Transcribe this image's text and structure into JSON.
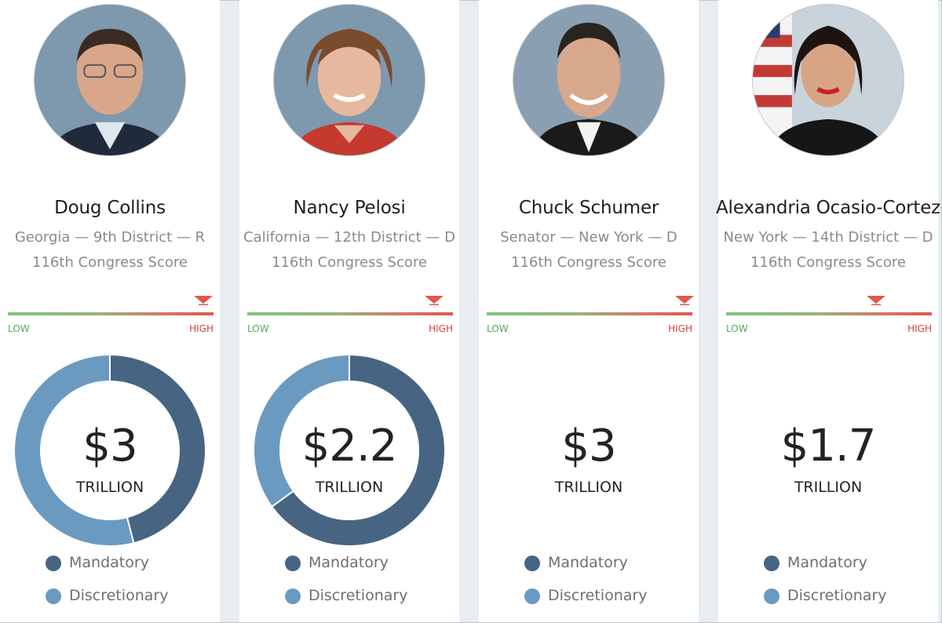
{
  "colors": {
    "mandatory": "#476582",
    "discretionary": "#6b9ac0",
    "low": "#5aa55a",
    "high": "#d4463a"
  },
  "scale": {
    "low_label": "LOW",
    "high_label": "HIGH"
  },
  "legend": {
    "mandatory": "Mandatory",
    "discretionary": "Discretionary"
  },
  "members": [
    {
      "name": "Doug Collins",
      "district": "Georgia — 9th District — R",
      "score_label": "116th Congress Score",
      "score_level": 0.95,
      "amount": "$3",
      "unit": "TRILLION",
      "chart": {
        "mandatory_fraction": 0.46,
        "discretionary_fraction": 0.54
      }
    },
    {
      "name": "Nancy Pelosi",
      "district": "California — 12th District — D",
      "score_label": "116th Congress Score",
      "score_level": 0.91,
      "amount": "$2.2",
      "unit": "TRILLION",
      "chart": {
        "mandatory_fraction": 0.65,
        "discretionary_fraction": 0.35
      }
    },
    {
      "name": "Chuck Schumer",
      "district": "Senator — New York — D",
      "score_label": "116th Congress Score",
      "score_level": 0.96,
      "amount": "$3",
      "unit": "TRILLION",
      "chart": null
    },
    {
      "name": "Alexandria Ocasio-Cortez",
      "district": "New York — 14th District — D",
      "score_label": "116th Congress Score",
      "score_level": 0.73,
      "amount": "$1.7",
      "unit": "TRILLION",
      "chart": null
    }
  ]
}
